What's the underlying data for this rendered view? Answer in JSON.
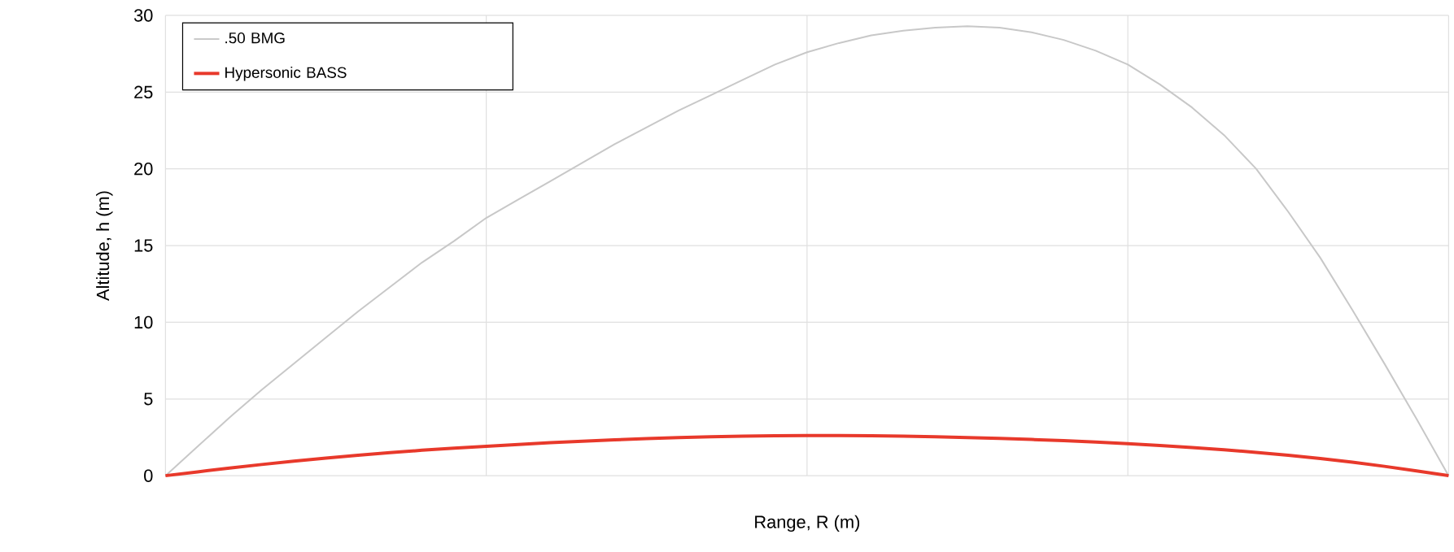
{
  "chart_data": {
    "type": "line",
    "xlabel": "Range, R (m)",
    "ylabel": "Altitude, h (m)",
    "categories": [
      null,
      null,
      null,
      null,
      null,
      null,
      null,
      null,
      null,
      null,
      null,
      null,
      null,
      null,
      null,
      null,
      null,
      null,
      null,
      null,
      null,
      null,
      null,
      null,
      null,
      null,
      null,
      null,
      null,
      null,
      null,
      null,
      null,
      null,
      null,
      null,
      null,
      null,
      null,
      null,
      null
    ],
    "series": [
      {
        "name": ".50 BMG",
        "color": "#c8c8c8",
        "values": [
          0,
          1.9,
          3.8,
          5.6,
          7.3,
          9.0,
          10.7,
          12.3,
          13.9,
          15.3,
          16.8,
          18.0,
          19.2,
          20.4,
          21.6,
          22.7,
          23.8,
          24.8,
          25.8,
          26.8,
          27.6,
          28.2,
          28.7,
          29.0,
          29.2,
          29.3,
          29.2,
          28.9,
          28.4,
          27.7,
          26.8,
          25.5,
          24.0,
          22.2,
          20.0,
          17.2,
          14.2,
          10.8,
          7.3,
          3.7,
          0
        ]
      },
      {
        "name": "Hypersonic BASS",
        "color": "#e8392b",
        "values": [
          0,
          0.25,
          0.5,
          0.73,
          0.95,
          1.15,
          1.33,
          1.5,
          1.66,
          1.8,
          1.92,
          2.04,
          2.15,
          2.25,
          2.34,
          2.42,
          2.49,
          2.54,
          2.58,
          2.61,
          2.62,
          2.62,
          2.61,
          2.58,
          2.54,
          2.49,
          2.43,
          2.36,
          2.28,
          2.19,
          2.09,
          1.97,
          1.84,
          1.69,
          1.52,
          1.33,
          1.12,
          0.88,
          0.61,
          0.31,
          0
        ]
      }
    ],
    "ylim": [
      0,
      30
    ],
    "yticks": [
      0,
      5,
      10,
      15,
      20,
      25,
      30
    ],
    "grid": true,
    "legend": "top left",
    "tick_labels": "y"
  }
}
